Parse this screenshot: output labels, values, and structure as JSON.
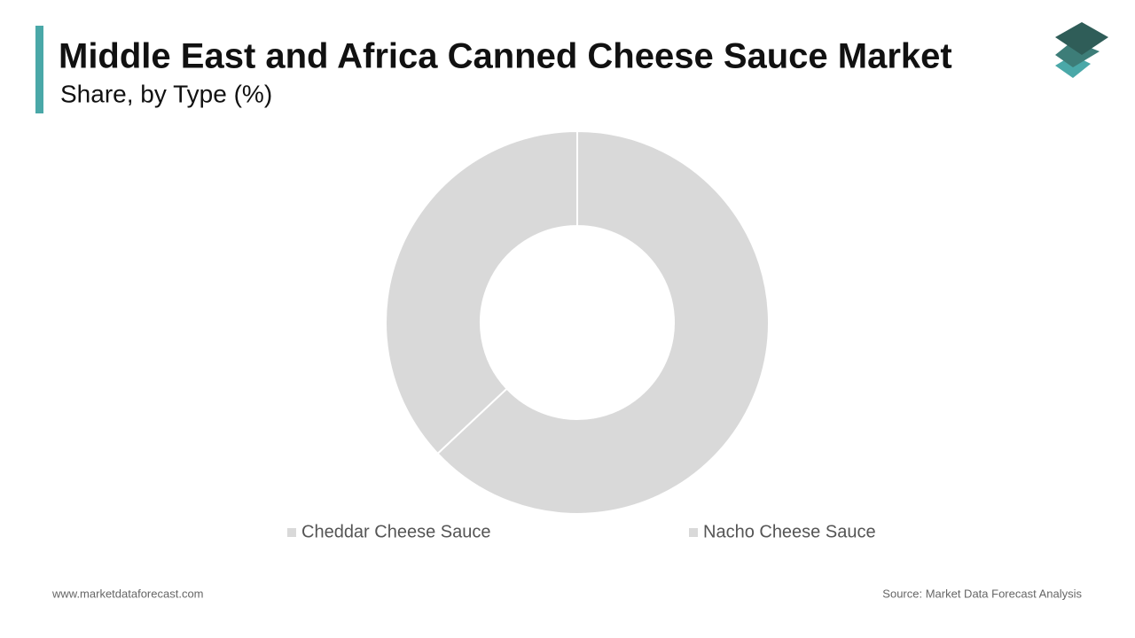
{
  "chart_data": {
    "type": "donut",
    "title": "Middle East and Africa Canned Cheese Sauce Market",
    "subtitle": "Share, by Type (%)",
    "categories": [
      "Cheddar Cheese Sauce",
      "Nacho Cheese Sauce"
    ],
    "values": [
      63,
      37
    ],
    "colors": [
      "#d9d9d9",
      "#d9d9d9"
    ]
  },
  "footer": {
    "website": "www.marketdataforecast.com",
    "source": "Source: Market Data Forecast Analysis"
  }
}
